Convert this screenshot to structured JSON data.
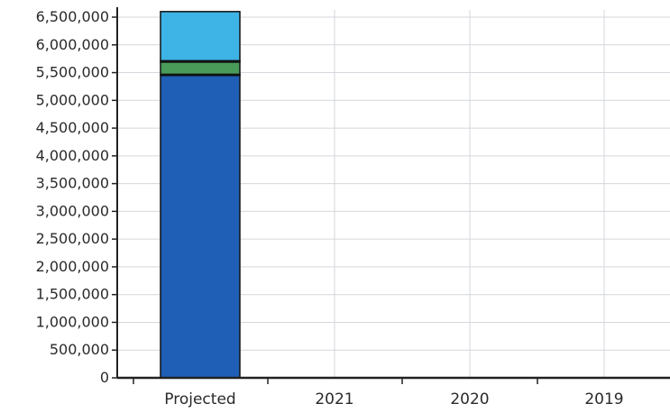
{
  "chart_data": {
    "type": "bar",
    "stacked": true,
    "categories": [
      "Projected",
      "2021",
      "2020",
      "2019"
    ],
    "series": [
      {
        "values": [
          5450000,
          0,
          0,
          0
        ],
        "color": "#1f5fb5"
      },
      {
        "values": [
          20000,
          0,
          0,
          0
        ],
        "color": "#1a2a4a"
      },
      {
        "values": [
          220000,
          0,
          0,
          0
        ],
        "color": "#4a9a5a"
      },
      {
        "values": [
          25000,
          0,
          0,
          0
        ],
        "color": "#163a2a"
      },
      {
        "values": [
          885000,
          0,
          0,
          0
        ],
        "color": "#3eb3e6"
      }
    ],
    "y_ticks": [
      "0",
      "500,000",
      "1,000,000",
      "1,500,000",
      "2,000,000",
      "2,500,000",
      "3,000,000",
      "3,500,000",
      "4,000,000",
      "4,500,000",
      "5,000,000",
      "5,500,000",
      "6,000,000",
      "6,500,000"
    ],
    "ylim": [
      0,
      6500000
    ],
    "grid": true,
    "legend": "none"
  }
}
